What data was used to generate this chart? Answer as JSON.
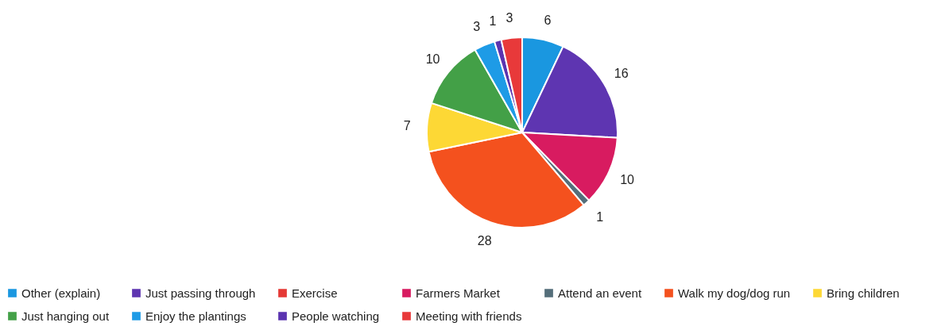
{
  "chart_data": {
    "type": "pie",
    "categories": [
      "Other (explain)",
      "Just passing through",
      "Exercise",
      "Farmers Market",
      "Attend an event",
      "Walk my dog/dog run",
      "Bring children",
      "Just hanging out",
      "Enjoy the plantings",
      "People watching",
      "Meeting with friends"
    ],
    "values": [
      6,
      16,
      0,
      10,
      1,
      28,
      7,
      10,
      3,
      1,
      3
    ],
    "value_labels": [
      "6",
      "16",
      null,
      "10",
      "1",
      "28",
      "7",
      "10",
      "3",
      "1",
      "3"
    ],
    "colors": [
      "#1a97e0",
      "#5e35b1",
      "#e53935",
      "#d81b60",
      "#546e7a",
      "#f4511e",
      "#fdd835",
      "#43a047",
      "#1e9be6",
      "#5b34b0",
      "#e8393a"
    ],
    "legend": "bottom"
  }
}
